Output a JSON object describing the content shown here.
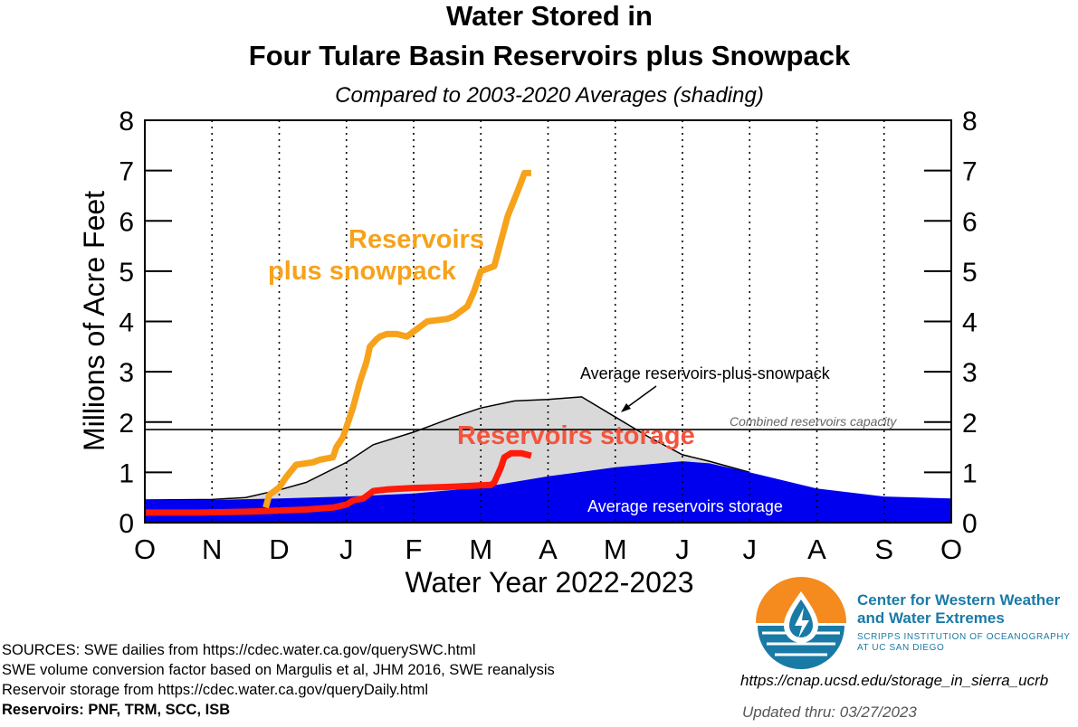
{
  "chart_data": {
    "type": "area",
    "title_line1": "Water Stored in",
    "title_line2": "Four Tulare Basin Reservoirs plus Snowpack",
    "subtitle": "Compared to 2003-2020 Averages (shading)",
    "ylabel": "Millions of Acre Feet",
    "xlabel": "Water Year 2022-2023",
    "ylim": [
      0,
      8
    ],
    "y_ticks": [
      "0",
      "1",
      "2",
      "3",
      "4",
      "5",
      "6",
      "7",
      "8"
    ],
    "x_ticks": [
      "O",
      "N",
      "D",
      "J",
      "F",
      "M",
      "A",
      "M",
      "J",
      "J",
      "A",
      "S",
      "O"
    ],
    "xlim_months": [
      0,
      12
    ],
    "capacity": {
      "label": "Combined reservoirs capacity",
      "value": 1.85
    },
    "avg_reservoirs": {
      "label": "Average reservoirs storage",
      "color": "#0000ee",
      "x": [
        0,
        1,
        2,
        3,
        4,
        5,
        6,
        7,
        8,
        8.4,
        9,
        10,
        11,
        12
      ],
      "y": [
        0.45,
        0.45,
        0.48,
        0.52,
        0.58,
        0.7,
        0.92,
        1.1,
        1.22,
        1.18,
        1.0,
        0.68,
        0.52,
        0.48
      ]
    },
    "avg_res_plus_snow": {
      "label": "Average reservoirs-plus-snowpack",
      "fill": "#d9d9d9",
      "x": [
        0,
        1,
        1.5,
        2,
        2.4,
        3,
        3.4,
        4,
        4.6,
        5,
        5.5,
        6,
        6.5,
        7,
        7.5,
        8,
        8.4,
        9
      ],
      "y": [
        0.45,
        0.46,
        0.5,
        0.65,
        0.8,
        1.2,
        1.55,
        1.8,
        2.1,
        2.28,
        2.42,
        2.45,
        2.5,
        2.1,
        1.7,
        1.35,
        1.22,
        1.0
      ]
    },
    "reservoirs_storage": {
      "label": "Reservoirs storage",
      "color": "#ff1a0a",
      "x": [
        0,
        0.8,
        1.6,
        2.0,
        2.4,
        2.8,
        3.0,
        3.1,
        3.25,
        3.4,
        3.6,
        4.0,
        4.5,
        5.0,
        5.15,
        5.2,
        5.3,
        5.35,
        5.45,
        5.6,
        5.75
      ],
      "y": [
        0.2,
        0.2,
        0.22,
        0.24,
        0.26,
        0.3,
        0.36,
        0.44,
        0.48,
        0.63,
        0.66,
        0.69,
        0.71,
        0.74,
        0.75,
        0.8,
        1.1,
        1.3,
        1.38,
        1.38,
        1.33
      ]
    },
    "reservoirs_plus_snowpack": {
      "label_line1": "Reservoirs",
      "label_line2": "plus snowpack",
      "color": "#f7a21b",
      "x": [
        1.8,
        1.85,
        2.0,
        2.1,
        2.25,
        2.5,
        2.6,
        2.8,
        2.85,
        2.95,
        3.0,
        3.05,
        3.1,
        3.2,
        3.3,
        3.35,
        3.45,
        3.5,
        3.6,
        3.75,
        3.9,
        4.0,
        4.2,
        4.5,
        4.6,
        4.8,
        4.9,
        5.0,
        5.2,
        5.3,
        5.4,
        5.55,
        5.65,
        5.75
      ],
      "y": [
        0.3,
        0.55,
        0.7,
        0.9,
        1.15,
        1.2,
        1.25,
        1.3,
        1.5,
        1.7,
        1.9,
        2.1,
        2.3,
        2.8,
        3.2,
        3.5,
        3.65,
        3.7,
        3.75,
        3.75,
        3.7,
        3.8,
        4.0,
        4.05,
        4.1,
        4.3,
        4.6,
        5.0,
        5.1,
        5.6,
        6.1,
        6.6,
        6.95,
        6.95
      ]
    }
  },
  "sources": {
    "line1": "SOURCES: SWE dailies from https://cdec.water.ca.gov/querySWC.html",
    "line2": "SWE volume conversion factor based on Margulis et al, JHM 2016, SWE reanalysis",
    "line3": "Reservoir storage from https://cdec.water.ca.gov/queryDaily.html",
    "line4": "Reservoirs: PNF, TRM, SCC, ISB"
  },
  "logo": {
    "name_line1": "Center for Western Weather",
    "name_line2": "and Water Extremes",
    "sub_line1": "SCRIPPS INSTITUTION OF OCEANOGRAPHY",
    "sub_line2": "AT UC SAN DIEGO",
    "orange": "#f58a1f",
    "blue": "#1a7aa6"
  },
  "url": "https://cnap.ucsd.edu/storage_in_sierra_ucrb",
  "updated": "Updated thru: 03/27/2023"
}
